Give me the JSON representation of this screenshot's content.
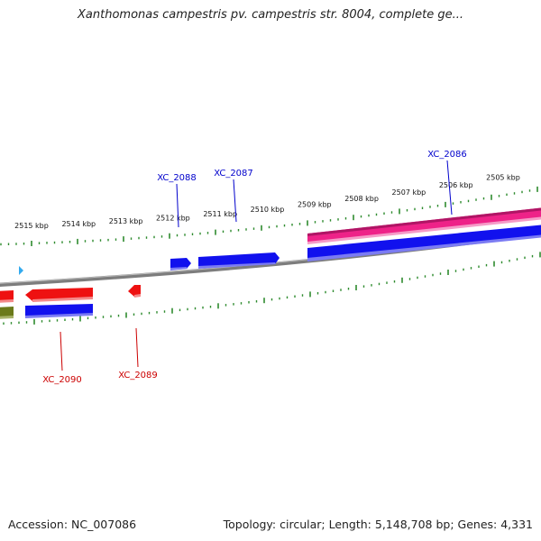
{
  "title": "Xanthomonas campestris pv. campestris str. 8004, complete ge...",
  "footer": {
    "accession": "Accession: NC_007086",
    "summary": "Topology: circular; Length: 5,148,708 bp; Genes: 4,331"
  },
  "ruler": {
    "labels": [
      "2515 kbp",
      "2514 kbp",
      "2513 kbp",
      "2512 kbp",
      "2511 kbp",
      "2510 kbp",
      "2509 kbp",
      "2508 kbp",
      "2507 kbp",
      "2506 kbp",
      "2505 kbp"
    ],
    "tick_color": "#2e8b2e"
  },
  "genes": [
    {
      "id": "XC_2086",
      "strand": "forward",
      "color": "#0000cc"
    },
    {
      "id": "XC_2087",
      "strand": "forward",
      "color": "#0000cc"
    },
    {
      "id": "XC_2088",
      "strand": "forward",
      "color": "#0000cc"
    },
    {
      "id": "XC_2089",
      "strand": "reverse",
      "color": "#cc0000"
    },
    {
      "id": "XC_2090",
      "strand": "reverse",
      "color": "#cc0000"
    }
  ],
  "colors": {
    "forward_feature": "#1515ee",
    "reverse_feature": "#ee1111",
    "pink_feature": "#ee2288",
    "olive_feature": "#6b7a1a",
    "backbone": "#8a8a8a",
    "label_forward": "#0000cc",
    "label_reverse": "#cc0000"
  }
}
